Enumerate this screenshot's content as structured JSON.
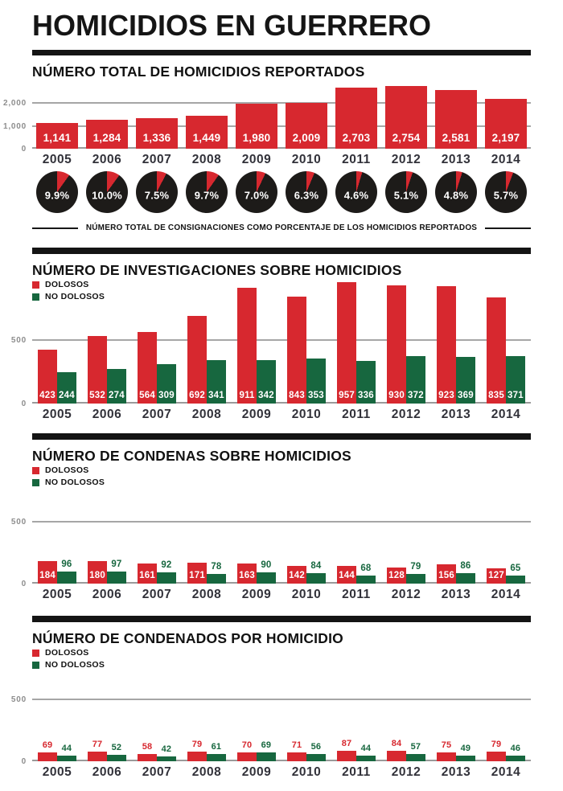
{
  "header": {
    "title": "HOMICIDIOS EN GUERRERO"
  },
  "colors": {
    "red": "#d7282f",
    "green": "#17673f",
    "pie_black": "#1d1b19",
    "rule_black": "#141414"
  },
  "years": [
    "2005",
    "2006",
    "2007",
    "2008",
    "2009",
    "2010",
    "2011",
    "2012",
    "2013",
    "2014"
  ],
  "chart_data": [
    {
      "type": "bar",
      "title": "NÚMERO TOTAL DE HOMICIDIOS REPORTADOS",
      "categories": [
        "2005",
        "2006",
        "2007",
        "2008",
        "2009",
        "2010",
        "2011",
        "2012",
        "2013",
        "2014"
      ],
      "values": [
        1141,
        1284,
        1336,
        1449,
        1980,
        2009,
        2703,
        2754,
        2581,
        2197
      ],
      "value_labels": [
        "1,141",
        "1,284",
        "1,336",
        "1,449",
        "1,980",
        "2,009",
        "2,703",
        "2,754",
        "2,581",
        "2,197"
      ],
      "yticks": [
        0,
        1000,
        2000
      ],
      "ytick_labels": [
        "0",
        "1,000",
        "2,000"
      ],
      "ylim": [
        0,
        2900
      ],
      "grid": true,
      "legend": null,
      "bar_color_key": "red",
      "label_pos": "inside"
    },
    {
      "type": "pie",
      "subtype": "small-multiples",
      "categories": [
        "2005",
        "2006",
        "2007",
        "2008",
        "2009",
        "2010",
        "2011",
        "2012",
        "2013",
        "2014"
      ],
      "values": [
        9.9,
        10.0,
        7.5,
        9.7,
        7.0,
        6.3,
        4.6,
        5.1,
        4.8,
        5.7
      ],
      "labels": [
        "9.9%",
        "10.0%",
        "7.5%",
        "9.7%",
        "7.0%",
        "6.3%",
        "4.6%",
        "5.1%",
        "4.8%",
        "5.7%"
      ],
      "slice_color_key": "red",
      "base_color_key": "pie_black",
      "caption": "NÚMERO TOTAL DE CONSIGNACIONES COMO PORCENTAJE DE LOS HOMICIDIOS REPORTADOS"
    },
    {
      "type": "bar",
      "title": "NÚMERO DE INVESTIGACIONES SOBRE HOMICIDIOS",
      "categories": [
        "2005",
        "2006",
        "2007",
        "2008",
        "2009",
        "2010",
        "2011",
        "2012",
        "2013",
        "2014"
      ],
      "series": [
        {
          "name": "DOLOSOS",
          "color_key": "red",
          "label_pos": "inside",
          "values": [
            423,
            532,
            564,
            692,
            911,
            843,
            957,
            930,
            923,
            835
          ]
        },
        {
          "name": "NO DOLOSOS",
          "color_key": "green",
          "label_pos": "inside",
          "values": [
            244,
            274,
            309,
            341,
            342,
            353,
            336,
            372,
            369,
            371
          ]
        }
      ],
      "yticks": [
        0,
        500
      ],
      "ytick_labels": [
        "0",
        "500"
      ],
      "ylim": [
        0,
        980
      ],
      "grid": true,
      "legend": [
        "DOLOSOS",
        "NO DOLOSOS"
      ],
      "legend_position": "top-left"
    },
    {
      "type": "bar",
      "title": "NÚMERO DE CONDENAS SOBRE HOMICIDIOS",
      "categories": [
        "2005",
        "2006",
        "2007",
        "2008",
        "2009",
        "2010",
        "2011",
        "2012",
        "2013",
        "2014"
      ],
      "series": [
        {
          "name": "DOLOSOS",
          "color_key": "red",
          "label_pos": "inside",
          "values": [
            184,
            180,
            161,
            171,
            163,
            142,
            144,
            128,
            156,
            127
          ]
        },
        {
          "name": "NO DOLOSOS",
          "color_key": "green",
          "label_pos": "above",
          "values": [
            96,
            97,
            92,
            78,
            90,
            84,
            68,
            79,
            86,
            65
          ]
        }
      ],
      "yticks": [
        0,
        500
      ],
      "ytick_labels": [
        "0",
        "500"
      ],
      "ylim": [
        0,
        600
      ],
      "grid": true,
      "legend": [
        "DOLOSOS",
        "NO DOLOSOS"
      ],
      "legend_position": "top-left"
    },
    {
      "type": "bar",
      "title": "NÚMERO DE CONDENADOS POR HOMICIDIO",
      "categories": [
        "2005",
        "2006",
        "2007",
        "2008",
        "2009",
        "2010",
        "2011",
        "2012",
        "2013",
        "2014"
      ],
      "series": [
        {
          "name": "DOLOSOS",
          "color_key": "red",
          "label_pos": "above",
          "values": [
            69,
            77,
            58,
            79,
            70,
            71,
            87,
            84,
            75,
            79
          ]
        },
        {
          "name": "NO DOLOSOS",
          "color_key": "green",
          "label_pos": "above",
          "values": [
            44,
            52,
            42,
            61,
            69,
            56,
            44,
            57,
            49,
            46
          ]
        }
      ],
      "yticks": [
        0,
        500
      ],
      "ytick_labels": [
        "0",
        "500"
      ],
      "ylim": [
        0,
        600
      ],
      "grid": true,
      "legend": [
        "DOLOSOS",
        "NO DOLOSOS"
      ],
      "legend_position": "top-left"
    }
  ]
}
